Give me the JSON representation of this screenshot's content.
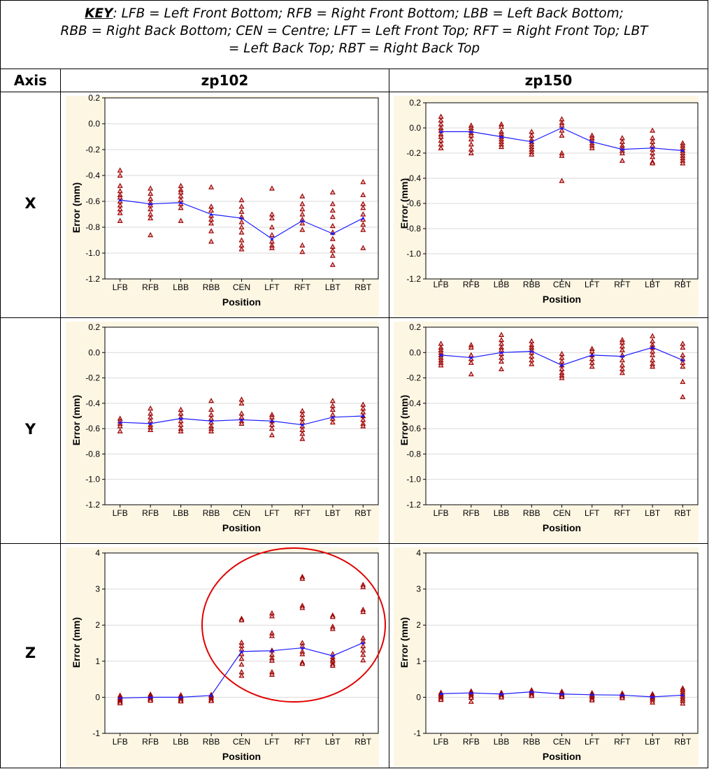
{
  "key": {
    "label": "KEY",
    "line1": "LFB = Left Front Bottom; RFB = Right Front Bottom; LBB = Left Back Bottom;",
    "line2": "RBB = Right Back Bottom; CEN = Centre; LFT = Left Front Top; RFT = Right Front Top;   LBT",
    "line3": "= Left Back Top; RBT = Right Back Top"
  },
  "headers": {
    "axis": "Axis",
    "col1": "zp102",
    "col2": "zp150"
  },
  "row_labels": [
    "X",
    "Y",
    "Z"
  ],
  "colors": {
    "mean_line": "#1a1aff",
    "points": "#9b0000",
    "plot_bg": "#fdf6e3",
    "circle": "#e00000"
  },
  "chart_data": [
    {
      "type": "scatter",
      "row": "X",
      "column": "zp102",
      "categories": [
        "LFB",
        "RFB",
        "LBB",
        "RBB",
        "CEN",
        "LFT",
        "RFT",
        "LBT",
        "RBT"
      ],
      "xlabel": "Position",
      "ylabel": "Error (mm)",
      "ylim": [
        -1.2,
        0.2
      ],
      "yticks": [
        "0.2",
        "0.0",
        "-0.2",
        "-0.4",
        "-0.6",
        "-0.8",
        "-1.0",
        "-1.2"
      ],
      "mean": [
        -0.59,
        -0.62,
        -0.61,
        -0.7,
        -0.73,
        -0.89,
        -0.75,
        -0.85,
        -0.73
      ],
      "points": [
        [
          -0.36,
          -0.4,
          -0.48,
          -0.52,
          -0.55,
          -0.57,
          -0.6,
          -0.63,
          -0.66,
          -0.69,
          -0.75
        ],
        [
          -0.5,
          -0.54,
          -0.58,
          -0.61,
          -0.63,
          -0.66,
          -0.7,
          -0.73,
          -0.86
        ],
        [
          -0.48,
          -0.51,
          -0.53,
          -0.56,
          -0.59,
          -0.62,
          -0.65,
          -0.75
        ],
        [
          -0.49,
          -0.64,
          -0.67,
          -0.71,
          -0.74,
          -0.77,
          -0.83,
          -0.91
        ],
        [
          -0.59,
          -0.64,
          -0.68,
          -0.72,
          -0.76,
          -0.8,
          -0.84,
          -0.9,
          -0.94,
          -0.97
        ],
        [
          -0.5,
          -0.7,
          -0.73,
          -0.8,
          -0.86,
          -0.91,
          -0.94,
          -0.96
        ],
        [
          -0.56,
          -0.62,
          -0.66,
          -0.7,
          -0.74,
          -0.77,
          -0.82,
          -0.94,
          -0.99
        ],
        [
          -0.53,
          -0.62,
          -0.67,
          -0.72,
          -0.79,
          -0.84,
          -0.89,
          -0.95,
          -0.98,
          -1.02,
          -1.09
        ],
        [
          -0.45,
          -0.55,
          -0.62,
          -0.65,
          -0.7,
          -0.74,
          -0.78,
          -0.82,
          -0.96
        ]
      ]
    },
    {
      "type": "scatter",
      "row": "X",
      "column": "zp150",
      "categories": [
        "LFB",
        "RFB",
        "LBB",
        "RBB",
        "CEN",
        "LFT",
        "RFT",
        "LBT",
        "RBT"
      ],
      "xlabel": "Position",
      "ylabel": "Error (mm)",
      "ylim": [
        -1.2,
        0.2
      ],
      "yticks": [
        "0.2",
        "0.0",
        "-0.2",
        "-0.4",
        "-0.6",
        "-0.8",
        "-1.0",
        "-1.2"
      ],
      "mean": [
        -0.03,
        -0.03,
        -0.07,
        -0.11,
        0.0,
        -0.11,
        -0.17,
        -0.16,
        -0.18
      ],
      "points": [
        [
          0.09,
          0.06,
          0.03,
          0.0,
          -0.02,
          -0.05,
          -0.07,
          -0.1,
          -0.13,
          -0.16
        ],
        [
          0.02,
          0.0,
          -0.02,
          -0.04,
          -0.06,
          -0.09,
          -0.13,
          -0.17,
          -0.2
        ],
        [
          0.03,
          0.01,
          -0.03,
          -0.05,
          -0.07,
          -0.09,
          -0.11,
          -0.13,
          -0.15
        ],
        [
          -0.03,
          -0.06,
          -0.09,
          -0.11,
          -0.13,
          -0.15,
          -0.17,
          -0.19,
          -0.21
        ],
        [
          0.07,
          0.04,
          0.02,
          -0.02,
          -0.06,
          -0.2,
          -0.22,
          -0.42
        ],
        [
          -0.06,
          -0.08,
          -0.1,
          -0.12,
          -0.14,
          -0.16
        ],
        [
          -0.08,
          -0.11,
          -0.14,
          -0.16,
          -0.18,
          -0.2,
          -0.26
        ],
        [
          -0.02,
          -0.08,
          -0.11,
          -0.14,
          -0.17,
          -0.2,
          -0.23,
          -0.27,
          -0.28
        ],
        [
          -0.12,
          -0.14,
          -0.16,
          -0.18,
          -0.2,
          -0.22,
          -0.24,
          -0.26,
          -0.28
        ]
      ]
    },
    {
      "type": "scatter",
      "row": "Y",
      "column": "zp102",
      "categories": [
        "LFB",
        "RFB",
        "LBB",
        "RBB",
        "CEN",
        "LFT",
        "RFT",
        "LBT",
        "RBT"
      ],
      "xlabel": "Position",
      "ylabel": "Error (mm)",
      "ylim": [
        -1.2,
        0.2
      ],
      "yticks": [
        "0.2",
        "0.0",
        "-0.2",
        "-0.4",
        "-0.6",
        "-0.8",
        "-1.0",
        "-1.2"
      ],
      "mean": [
        -0.55,
        -0.56,
        -0.52,
        -0.54,
        -0.53,
        -0.54,
        -0.57,
        -0.51,
        -0.5
      ],
      "points": [
        [
          -0.52,
          -0.54,
          -0.56,
          -0.58,
          -0.62
        ],
        [
          -0.44,
          -0.48,
          -0.51,
          -0.54,
          -0.57,
          -0.59,
          -0.61
        ],
        [
          -0.45,
          -0.48,
          -0.51,
          -0.54,
          -0.57,
          -0.6,
          -0.62
        ],
        [
          -0.38,
          -0.45,
          -0.49,
          -0.52,
          -0.55,
          -0.58,
          -0.6,
          -0.62
        ],
        [
          -0.37,
          -0.4,
          -0.48,
          -0.51,
          -0.54,
          -0.56
        ],
        [
          -0.49,
          -0.51,
          -0.54,
          -0.57,
          -0.6,
          -0.65
        ],
        [
          -0.46,
          -0.49,
          -0.52,
          -0.55,
          -0.58,
          -0.61,
          -0.64,
          -0.68
        ],
        [
          -0.38,
          -0.42,
          -0.45,
          -0.49,
          -0.52,
          -0.55
        ],
        [
          -0.41,
          -0.44,
          -0.47,
          -0.5,
          -0.53,
          -0.56,
          -0.58
        ]
      ]
    },
    {
      "type": "scatter",
      "row": "Y",
      "column": "zp150",
      "categories": [
        "LFB",
        "RFB",
        "LBB",
        "RBB",
        "CEN",
        "LFT",
        "RFT",
        "LBT",
        "RBT"
      ],
      "xlabel": "Position",
      "ylabel": "Error (mm)",
      "ylim": [
        -1.2,
        0.2
      ],
      "yticks": [
        "0.2",
        "0.0",
        "-0.2",
        "-0.4",
        "-0.6",
        "-0.8",
        "-1.0",
        "-1.2"
      ],
      "mean": [
        -0.02,
        -0.04,
        0.0,
        0.01,
        -0.1,
        -0.02,
        -0.03,
        0.04,
        -0.06
      ],
      "points": [
        [
          0.07,
          0.04,
          0.02,
          0.0,
          -0.02,
          -0.04,
          -0.06,
          -0.08,
          -0.1
        ],
        [
          0.06,
          0.04,
          -0.02,
          -0.05,
          -0.08,
          -0.17
        ],
        [
          0.14,
          0.1,
          0.07,
          0.04,
          0.02,
          -0.01,
          -0.04,
          -0.07,
          -0.13
        ],
        [
          0.09,
          0.06,
          0.04,
          0.02,
          0.0,
          -0.03,
          -0.06,
          -0.09
        ],
        [
          -0.01,
          -0.04,
          -0.07,
          -0.1,
          -0.13,
          -0.16,
          -0.18,
          -0.2
        ],
        [
          0.03,
          0.01,
          -0.02,
          -0.05,
          -0.08,
          -0.11
        ],
        [
          0.1,
          0.08,
          0.05,
          0.02,
          -0.02,
          -0.06,
          -0.1,
          -0.13,
          -0.16
        ],
        [
          0.13,
          0.09,
          0.06,
          0.04,
          0.01,
          -0.02,
          -0.06,
          -0.09,
          -0.11
        ],
        [
          0.07,
          0.04,
          -0.02,
          -0.05,
          -0.08,
          -0.11,
          -0.23,
          -0.35
        ]
      ]
    },
    {
      "type": "scatter",
      "row": "Z",
      "column": "zp102",
      "categories": [
        "LFB",
        "RFB",
        "LBB",
        "RBB",
        "CEN",
        "LFT",
        "RFT",
        "LBT",
        "RBT"
      ],
      "xlabel": "Position",
      "ylabel": "Error (mm)",
      "ylim": [
        -1,
        4
      ],
      "yticks": [
        "4",
        "3",
        "2",
        "1",
        "0",
        "-1"
      ],
      "mean": [
        -0.02,
        0.0,
        0.0,
        0.05,
        1.27,
        1.29,
        1.37,
        1.15,
        1.51
      ],
      "points": [
        [
          0.05,
          0.0,
          -0.04,
          -0.08,
          -0.12,
          -0.16
        ],
        [
          0.08,
          0.04,
          0.01,
          -0.03,
          -0.06,
          -0.09
        ],
        [
          0.06,
          0.03,
          0.0,
          -0.04,
          -0.08,
          -0.11
        ],
        [
          0.07,
          0.03,
          -0.02,
          -0.07,
          -0.1
        ],
        [
          2.18,
          2.14,
          1.52,
          1.43,
          1.33,
          1.2,
          1.07,
          0.91,
          0.7,
          0.6
        ],
        [
          2.33,
          2.25,
          1.78,
          1.7,
          1.3,
          1.18,
          1.09,
          1.02,
          0.7,
          0.63
        ],
        [
          3.34,
          3.29,
          2.54,
          2.48,
          1.51,
          1.42,
          1.27,
          1.2,
          0.97,
          0.93
        ],
        [
          2.27,
          2.23,
          1.96,
          1.9,
          1.2,
          1.12,
          1.05,
          1.0,
          0.93,
          0.88
        ],
        [
          3.12,
          3.06,
          2.43,
          2.37,
          1.64,
          1.55,
          1.42,
          1.3,
          1.18,
          1.03
        ]
      ]
    },
    {
      "type": "scatter",
      "row": "Z",
      "column": "zp150",
      "categories": [
        "LFB",
        "RFB",
        "LBB",
        "RBB",
        "CEN",
        "LFT",
        "RFT",
        "LBT",
        "RBT"
      ],
      "xlabel": "Position",
      "ylabel": "Error (mm)",
      "ylim": [
        -1,
        4
      ],
      "yticks": [
        "4",
        "3",
        "2",
        "1",
        "0",
        "-1"
      ],
      "mean": [
        0.1,
        0.12,
        0.09,
        0.15,
        0.09,
        0.07,
        0.06,
        0.01,
        0.06
      ],
      "points": [
        [
          0.13,
          0.1,
          0.06,
          0.02,
          -0.03,
          -0.07
        ],
        [
          0.17,
          0.13,
          0.09,
          0.04,
          -0.01,
          -0.12
        ],
        [
          0.13,
          0.1,
          0.07,
          0.04,
          0.0
        ],
        [
          0.2,
          0.16,
          0.12,
          0.08,
          0.04
        ],
        [
          0.16,
          0.13,
          0.1,
          0.07,
          0.04,
          0.01
        ],
        [
          0.12,
          0.08,
          0.05,
          0.01,
          -0.04,
          -0.08
        ],
        [
          0.11,
          0.08,
          0.05,
          0.02,
          -0.02
        ],
        [
          0.09,
          0.05,
          0.01,
          -0.03,
          -0.08,
          -0.14
        ],
        [
          0.25,
          0.2,
          0.14,
          0.08,
          0.02,
          -0.04,
          -0.1,
          -0.17
        ]
      ]
    }
  ]
}
